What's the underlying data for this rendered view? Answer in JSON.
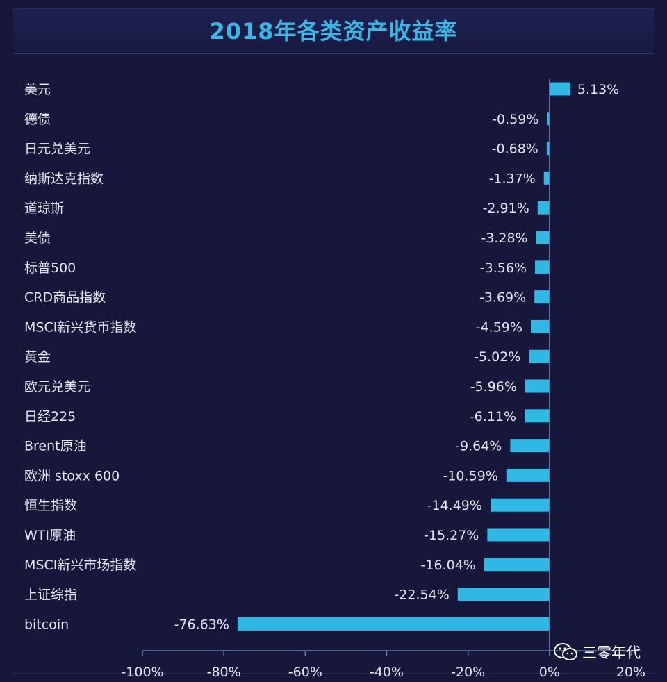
{
  "chart_data": {
    "type": "bar",
    "orientation": "horizontal",
    "title": "2018年各类资产收益率",
    "categories": [
      "美元",
      "德债",
      "日元兑美元",
      "纳斯达克指数",
      "道琼斯",
      "美债",
      "标普500",
      "CRD商品指数",
      "MSCI新兴货币指数",
      "黄金",
      "欧元兑美元",
      "日经225",
      "Brent原油",
      "欧洲 stoxx 600",
      "恒生指数",
      "WTI原油",
      "MSCI新兴市场指数",
      "上证综指",
      "bitcoin"
    ],
    "values": [
      5.13,
      -0.59,
      -0.68,
      -1.37,
      -2.91,
      -3.28,
      -3.56,
      -3.69,
      -4.59,
      -5.02,
      -5.96,
      -6.11,
      -9.64,
      -10.59,
      -14.49,
      -15.27,
      -16.04,
      -22.54,
      -76.63
    ],
    "value_labels": [
      "5.13%",
      "-0.59%",
      "-0.68%",
      "-1.37%",
      "-2.91%",
      "-3.28%",
      "-3.56%",
      "-3.69%",
      "-4.59%",
      "-5.02%",
      "-5.96%",
      "-6.11%",
      "-9.64%",
      "-10.59%",
      "-14.49%",
      "-15.27%",
      "-16.04%",
      "-22.54%",
      "-76.63%"
    ],
    "xlim": [
      -100,
      20
    ],
    "xticks": [
      -100,
      -80,
      -60,
      -40,
      -20,
      0,
      20
    ],
    "xtick_labels": [
      "-100%",
      "-80%",
      "-60%",
      "-40%",
      "-20%",
      "0%",
      "20%"
    ],
    "bar_color": "#2fb8e4",
    "grid": false
  },
  "watermark": {
    "text": "三零年代",
    "icon": "wechat-icon"
  },
  "colors": {
    "background": "#16173a",
    "title": "#39b8e6",
    "text": "#e6e6ef"
  }
}
